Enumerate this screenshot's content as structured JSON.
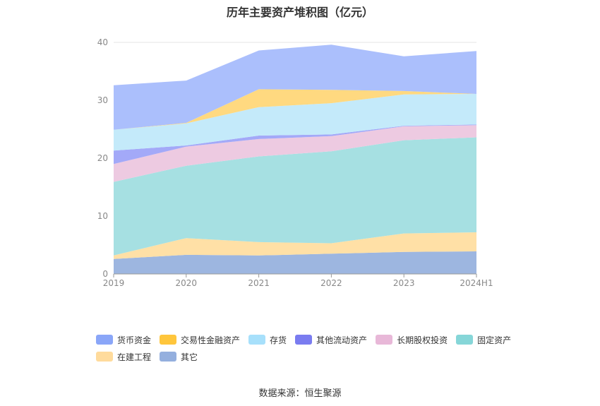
{
  "chart_data": {
    "type": "area",
    "stacked": true,
    "title": "历年主要资产堆积图（亿元）",
    "categories": [
      "2019",
      "2020",
      "2021",
      "2022",
      "2023",
      "2024H1"
    ],
    "ylim": [
      0,
      40
    ],
    "yticks": [
      "0",
      "10",
      "20",
      "30",
      "40"
    ],
    "grid": true,
    "legend_position": "bottom",
    "series": [
      {
        "name": "其它",
        "color": "#9db6e0",
        "values": [
          2.6,
          3.3,
          3.2,
          3.5,
          3.8,
          3.9
        ]
      },
      {
        "name": "在建工程",
        "color": "#ffe0a6",
        "values": [
          0.6,
          2.9,
          2.3,
          1.8,
          3.2,
          3.3
        ]
      },
      {
        "name": "固定资产",
        "color": "#a6e0e2",
        "values": [
          12.7,
          12.5,
          14.8,
          15.9,
          16.1,
          16.4
        ]
      },
      {
        "name": "长期股权投资",
        "color": "#edcae1",
        "values": [
          3.1,
          3.3,
          3.0,
          2.6,
          2.4,
          2.1
        ]
      },
      {
        "name": "其他流动资产",
        "color": "#a3a9f8",
        "values": [
          2.3,
          0.2,
          0.6,
          0.3,
          0.1,
          0.1
        ]
      },
      {
        "name": "存货",
        "color": "#c4eafa",
        "values": [
          3.6,
          3.8,
          4.9,
          5.4,
          5.4,
          5.3
        ]
      },
      {
        "name": "交易性金融资产",
        "color": "#ffd980",
        "values": [
          0,
          0.1,
          3.1,
          2.3,
          0.6,
          0
        ]
      },
      {
        "name": "货币资金",
        "color": "#abbffc",
        "values": [
          7.7,
          7.3,
          6.7,
          7.8,
          6.0,
          7.4
        ]
      }
    ]
  },
  "legend": [
    {
      "label": "货币资金",
      "color": "#8aa6f8"
    },
    {
      "label": "交易性金融资产",
      "color": "#ffc63c"
    },
    {
      "label": "存货",
      "color": "#a7e0fb"
    },
    {
      "label": "其他流动资产",
      "color": "#7a7cf0"
    },
    {
      "label": "长期股权投资",
      "color": "#e8b8d8"
    },
    {
      "label": "固定资产",
      "color": "#86d6d8"
    },
    {
      "label": "在建工程",
      "color": "#ffdb9c"
    },
    {
      "label": "其它",
      "color": "#94afde"
    }
  ],
  "source_text": "数据来源：恒生聚源"
}
